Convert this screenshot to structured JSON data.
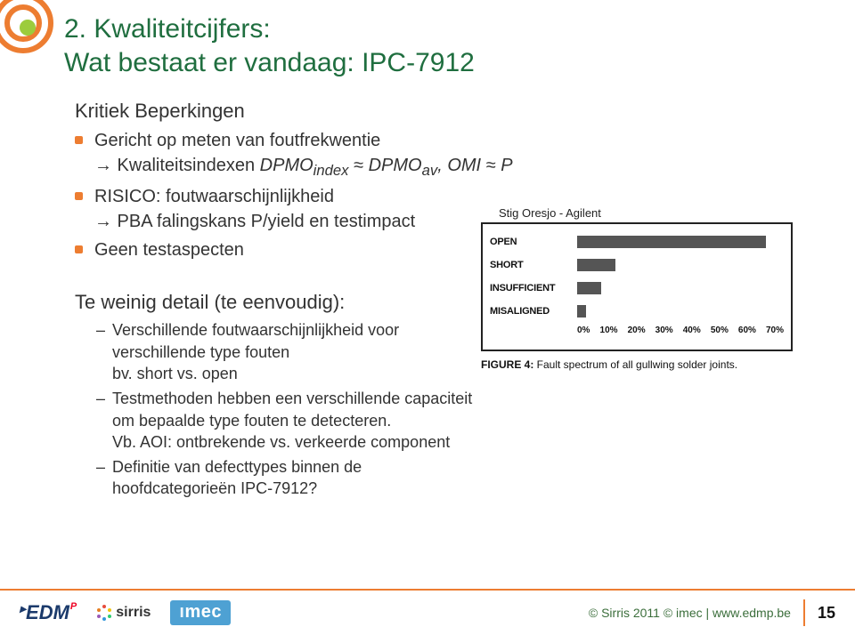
{
  "title_line1": "2. Kwaliteitcijfers:",
  "title_line2": "Wat bestaat er vandaag: IPC-7912",
  "section1_head": "Kritiek Beperkingen",
  "bullets1": {
    "b1_pre": "Gericht op meten van foutfrekwentie",
    "b1_arrow": "→ Kwaliteitsindexen ",
    "b1_formula_a": "DPMO",
    "b1_sub_a": "index",
    "b1_approx1": "≈",
    "b1_formula_b": "DPMO",
    "b1_sub_b": "av",
    "b1_comma": ", ",
    "b1_formula_c": "OMI",
    "b1_approx2": "≈",
    "b1_formula_d": "P",
    "b2_pre": "RISICO: foutwaarschijnlijkheid",
    "b2_arrow": "→ PBA falingskans P/yield en testimpact",
    "b3": "Geen testaspecten"
  },
  "stig_label": "Stig Oresjo - Agilent",
  "section2_head": "Te weinig detail (te eenvoudig):",
  "bullets2": {
    "s1_l1": "Verschillende foutwaarschijnlijkheid voor verschillende type fouten",
    "s1_l2": "bv. short vs. open",
    "s2_l1": "Testmethoden hebben een verschillende capaciteit om bepaalde type fouten te detecteren.",
    "s2_l2": "Vb. AOI: ontbrekende vs. verkeerde component",
    "s3": "Definitie van defecttypes binnen de hoofdcategorieën IPC-7912?"
  },
  "chart": {
    "type": "bar-horizontal",
    "categories": [
      "OPEN",
      "SHORT",
      "INSUFFICIENT",
      "MISALIGNED"
    ],
    "values": [
      64,
      13,
      8,
      3
    ],
    "xlim": [
      0,
      70
    ],
    "xtick_step": 10,
    "ticks": [
      "0%",
      "10%",
      "20%",
      "30%",
      "40%",
      "50%",
      "60%",
      "70%"
    ],
    "bar_color": "#555555",
    "border_color": "#222222",
    "caption_bold": "FIGURE 4: ",
    "caption_rest": "Fault spectrum of all gullwing solder joints."
  },
  "footer": {
    "edm": "EDM",
    "sirris": "sirris",
    "imec": "imec",
    "right_text": "© Sirris 2011 © imec | www.edmp.be",
    "page": "15"
  },
  "colors": {
    "accent_green": "#1f6e3f",
    "accent_orange": "#ed7d31",
    "lime": "#9ccc3c"
  }
}
